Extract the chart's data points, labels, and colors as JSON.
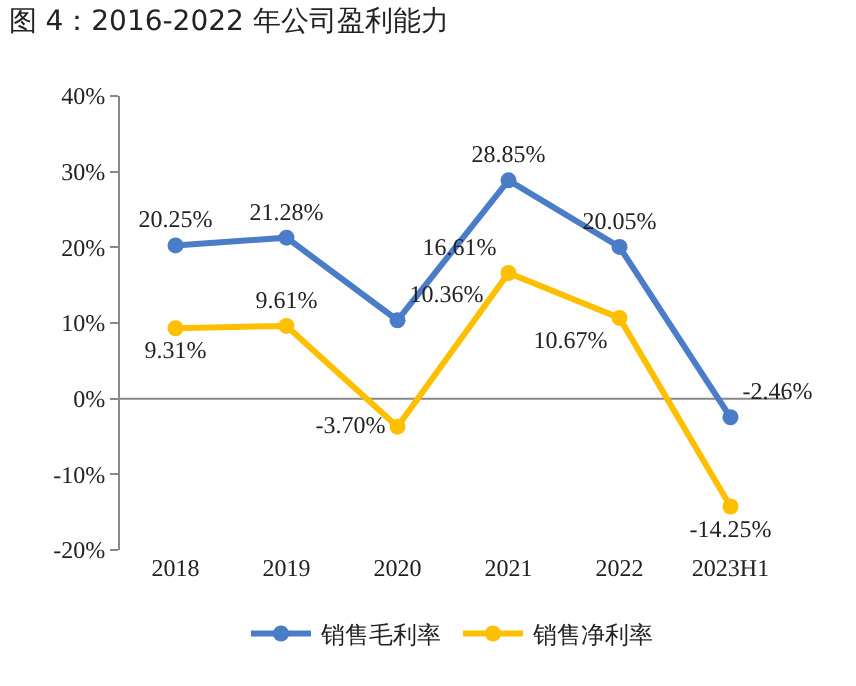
{
  "chart_data": {
    "type": "line",
    "title": "图 4：2016-2022 年公司盈利能力",
    "categories": [
      "2018",
      "2019",
      "2020",
      "2021",
      "2022",
      "2023H1"
    ],
    "series": [
      {
        "name": "销售毛利率",
        "color": "#4a7cc7",
        "values": [
          20.25,
          21.28,
          10.36,
          28.85,
          20.05,
          -2.46
        ],
        "value_labels": [
          "20.25%",
          "21.28%",
          "10.36%",
          "28.85%",
          "20.05%",
          "-2.46%"
        ]
      },
      {
        "name": "销售净利率",
        "color": "#fdbf00",
        "values": [
          9.31,
          9.61,
          -3.7,
          16.61,
          10.67,
          -14.25
        ],
        "value_labels": [
          "9.31%",
          "9.61%",
          "-3.70%",
          "16.61%",
          "10.67%",
          "-14.25%"
        ]
      }
    ],
    "ref_lines": [
      {
        "axis": "y",
        "value": 0,
        "color": "#888888"
      }
    ],
    "ylim": [
      -20,
      40
    ],
    "yticks": [
      {
        "value": -20,
        "label": "-20%"
      },
      {
        "value": -10,
        "label": "-10%"
      },
      {
        "value": 0,
        "label": "0%"
      },
      {
        "value": 10,
        "label": "10%"
      },
      {
        "value": 20,
        "label": "20%"
      },
      {
        "value": 30,
        "label": "30%"
      },
      {
        "value": 40,
        "label": "40%"
      }
    ],
    "legend": "bottom",
    "grid": false,
    "marker": "circle",
    "line_style": "solid"
  }
}
